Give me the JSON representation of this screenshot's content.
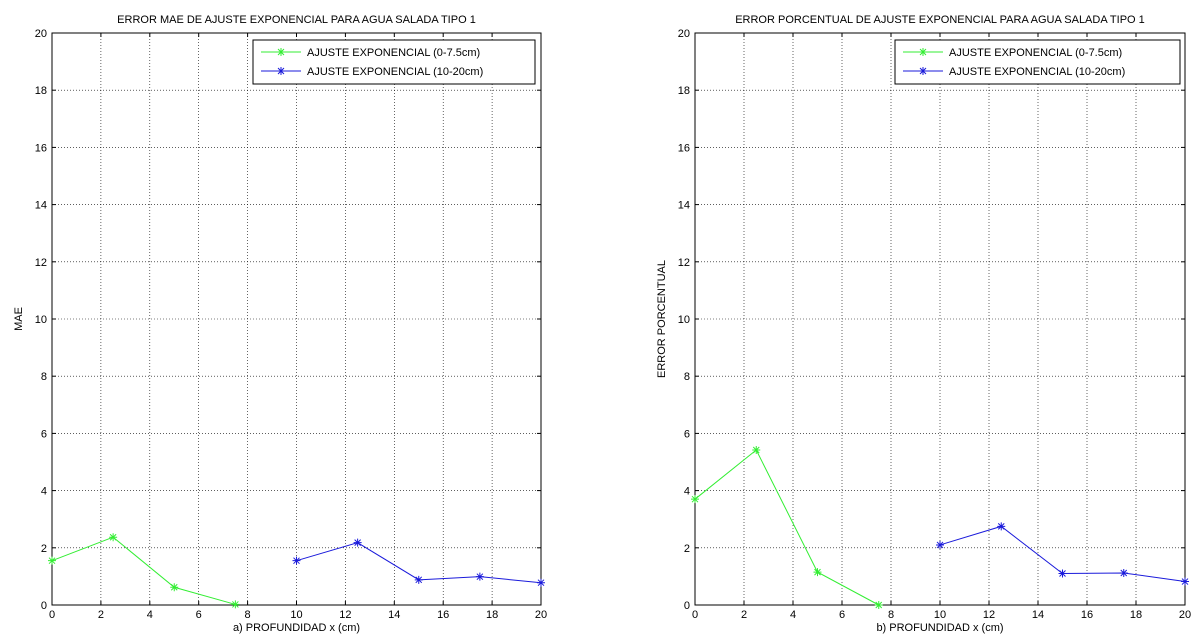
{
  "chart_data": [
    {
      "type": "line",
      "title": "ERROR MAE DE AJUSTE EXPONENCIAL PARA AGUA SALADA TIPO 1",
      "xlabel": "a) PROFUNDIDAD   x (cm)",
      "ylabel": "MAE",
      "xlim": [
        0,
        20
      ],
      "ylim": [
        0,
        20
      ],
      "xticks": [
        "0",
        "2",
        "4",
        "6",
        "8",
        "10",
        "12",
        "14",
        "16",
        "18",
        "20"
      ],
      "yticks": [
        "0",
        "2",
        "4",
        "6",
        "8",
        "10",
        "12",
        "14",
        "16",
        "18",
        "20"
      ],
      "grid": true,
      "legend_position": "top-right",
      "series": [
        {
          "name": "AJUSTE EXPONENCIAL (0-7.5cm)",
          "color": "#33ee33",
          "marker": "star",
          "x": [
            0,
            2.5,
            5,
            7.5
          ],
          "y": [
            1.55,
            2.37,
            0.62,
            0.02
          ]
        },
        {
          "name": "AJUSTE EXPONENCIAL (10-20cm)",
          "color": "#1a1adb",
          "marker": "star",
          "x": [
            10,
            12.5,
            15,
            17.5,
            20
          ],
          "y": [
            1.55,
            2.18,
            0.88,
            0.99,
            0.78
          ]
        }
      ]
    },
    {
      "type": "line",
      "title": "ERROR PORCENTUAL DE AJUSTE EXPONENCIAL PARA AGUA SALADA TIPO 1",
      "xlabel": "b) PROFUNDIDAD   x (cm)",
      "ylabel": "ERROR PORCENTUAL",
      "xlim": [
        0,
        20
      ],
      "ylim": [
        0,
        20
      ],
      "xticks": [
        "0",
        "2",
        "4",
        "6",
        "8",
        "10",
        "12",
        "14",
        "16",
        "18",
        "20"
      ],
      "yticks": [
        "0",
        "2",
        "4",
        "6",
        "8",
        "10",
        "12",
        "14",
        "16",
        "18",
        "20"
      ],
      "grid": true,
      "legend_position": "top-right",
      "series": [
        {
          "name": "AJUSTE EXPONENCIAL (0-7.5cm)",
          "color": "#33ee33",
          "marker": "star",
          "x": [
            0,
            2.5,
            5,
            7.5
          ],
          "y": [
            3.7,
            5.42,
            1.15,
            0.0
          ]
        },
        {
          "name": "AJUSTE EXPONENCIAL (10-20cm)",
          "color": "#1a1adb",
          "marker": "star",
          "x": [
            10,
            12.5,
            15,
            17.5,
            20
          ],
          "y": [
            2.1,
            2.75,
            1.1,
            1.12,
            0.82
          ]
        }
      ]
    }
  ]
}
